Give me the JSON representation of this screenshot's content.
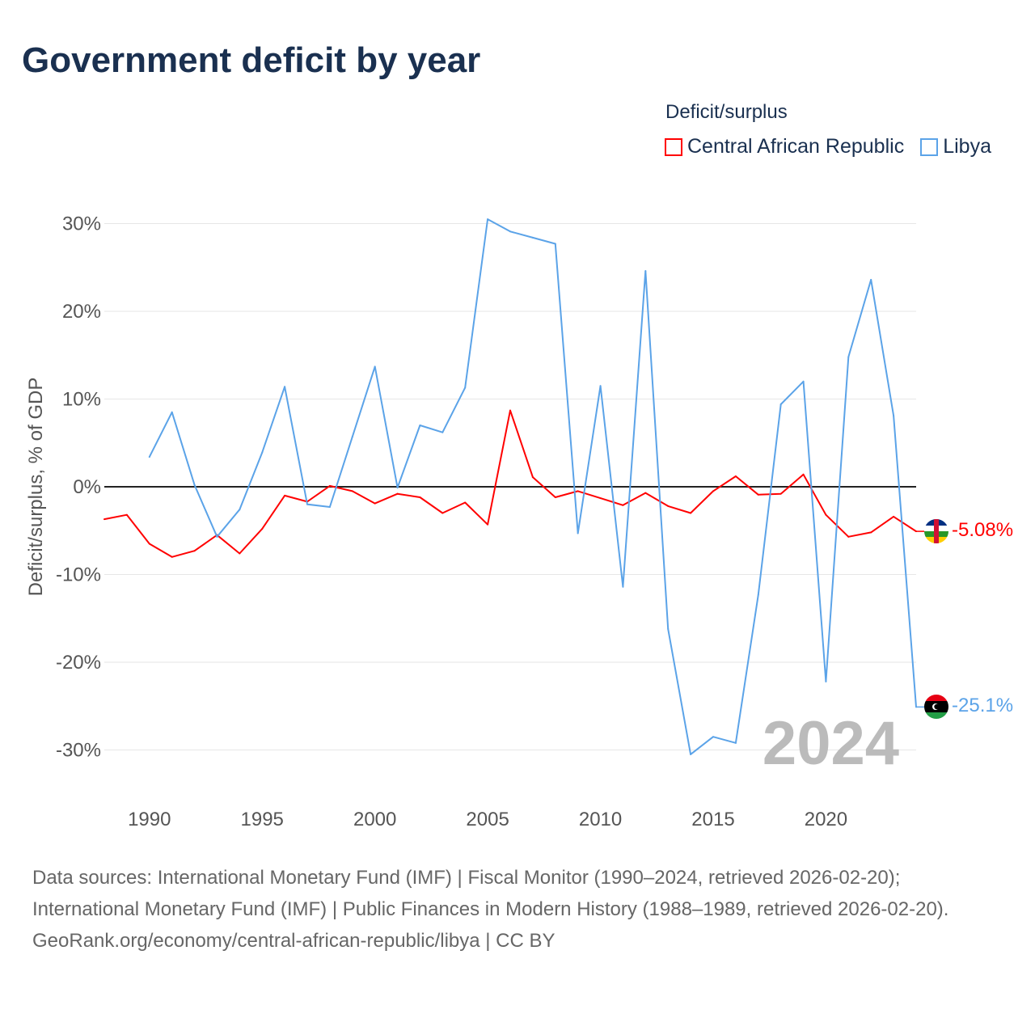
{
  "title": "Government deficit by year",
  "legend": {
    "title": "Deficit/surplus",
    "items": [
      {
        "name": "Central African Republic",
        "color": "#ff0000"
      },
      {
        "name": "Libya",
        "color": "#5ba3e8"
      }
    ]
  },
  "year_label": "2024",
  "end_labels": {
    "car": "-5.08%",
    "libya": "-25.1%"
  },
  "sources": "Data sources: International Monetary Fund (IMF) | Fiscal Monitor (1990–2024, retrieved 2026-02-20); International Monetary Fund (IMF) | Public Finances in Modern History (1988–1989, retrieved 2026-02-20).",
  "attribution": "GeoRank.org/economy/central-african-republic/libya | CC BY",
  "chart_data": {
    "type": "line",
    "title": "Government deficit by year",
    "ylabel": "Deficit/surplus, % of GDP",
    "xlabel": "",
    "xlim": [
      1988,
      2024
    ],
    "ylim": [
      -35,
      32
    ],
    "xticks": [
      1990,
      1995,
      2000,
      2005,
      2010,
      2015,
      2020
    ],
    "yticks": [
      30,
      20,
      10,
      0,
      -10,
      -20,
      -30
    ],
    "ytick_labels": [
      "30%",
      "20%",
      "10%",
      "0%",
      "-10%",
      "-20%",
      "-30%"
    ],
    "grid": true,
    "legend_position": "top-right",
    "series": [
      {
        "name": "Central African Republic",
        "color": "#ff0000",
        "x_start": 1988,
        "values": [
          -3.7,
          -3.2,
          -6.5,
          -8.0,
          -7.3,
          -5.5,
          -7.6,
          -4.8,
          -1.0,
          -1.7,
          0.1,
          -0.5,
          -1.9,
          -0.8,
          -1.2,
          -3.0,
          -1.8,
          -4.3,
          8.7,
          1.1,
          -1.2,
          -0.5,
          -1.3,
          -2.1,
          -0.7,
          -2.2,
          -3.0,
          -0.5,
          1.2,
          -0.9,
          -0.8,
          1.4,
          -3.2,
          -5.7,
          -5.2,
          -3.4,
          -5.08
        ]
      },
      {
        "name": "Libya",
        "color": "#5ba3e8",
        "x_start": 1990,
        "values": [
          3.4,
          8.5,
          0.2,
          -5.7,
          -2.6,
          3.9,
          11.4,
          -2.0,
          -2.3,
          5.7,
          13.7,
          -0.1,
          7.0,
          6.2,
          11.3,
          30.5,
          29.1,
          28.4,
          27.7,
          -5.3,
          11.5,
          -11.4,
          24.6,
          -16.2,
          -30.5,
          -28.5,
          -29.2,
          -12.3,
          9.4,
          12.0,
          -22.2,
          14.8,
          23.6,
          8.1,
          -25.1
        ]
      }
    ]
  }
}
